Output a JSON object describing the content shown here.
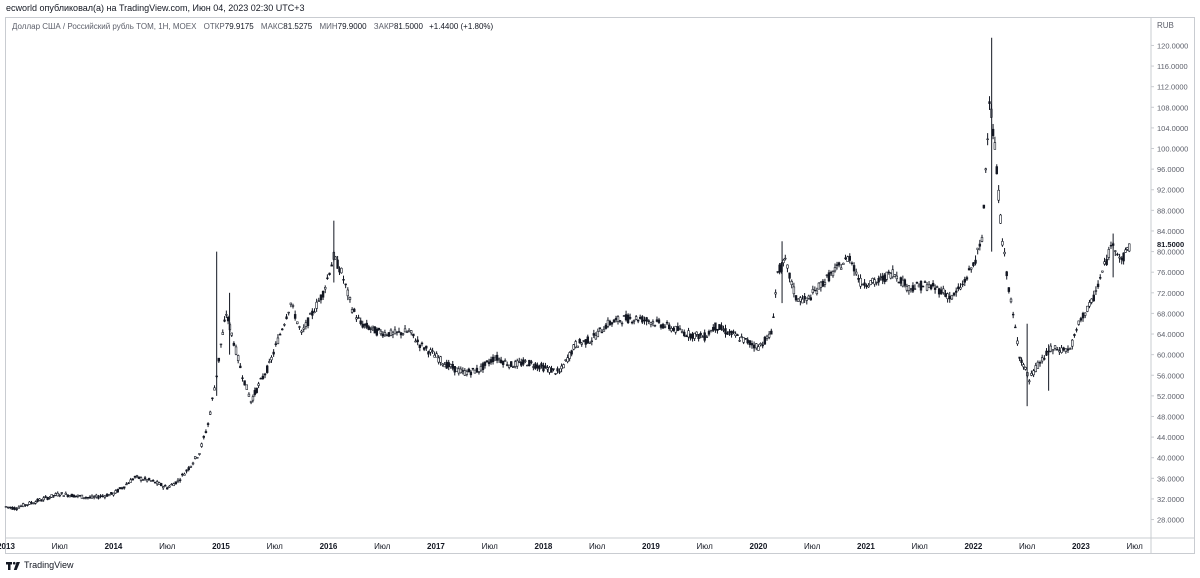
{
  "header": {
    "published": "ecworld опубликовал(а) на TradingView.com, Июн 04, 2023 02:30 UTC+3"
  },
  "legend": {
    "instrument": "Доллар США / Российский рубль TOM, 1Н, MOEX",
    "open_label": "ОТКР",
    "open_value": "79.9175",
    "high_label": "МАКС",
    "high_value": "81.5275",
    "low_label": "МИН",
    "low_value": "79.9000",
    "close_label": "ЗАКР",
    "close_value": "81.5000",
    "change": "+1.4400 (+1.80%)"
  },
  "footer": {
    "brand": "TradingView"
  },
  "chart_data": {
    "type": "candlestick",
    "title": "Доллар США / Российский рубль TOM, 1Н, MOEX",
    "currency_label": "RUB",
    "y_scale": "linear",
    "ylim": [
      25.0,
      123.0
    ],
    "y_ticks": [
      28,
      32,
      36,
      40,
      44,
      48,
      52,
      56,
      60,
      64,
      68,
      72,
      76,
      80,
      84,
      88,
      92,
      96,
      100,
      104,
      108,
      112,
      116,
      120
    ],
    "x_range": [
      2013.0,
      2023.55
    ],
    "x_ticks": [
      {
        "x": 2013.0,
        "label": "2013",
        "bold": true
      },
      {
        "x": 2013.5,
        "label": "Июл",
        "bold": false
      },
      {
        "x": 2014.0,
        "label": "2014",
        "bold": true
      },
      {
        "x": 2014.5,
        "label": "Июл",
        "bold": false
      },
      {
        "x": 2015.0,
        "label": "2015",
        "bold": true
      },
      {
        "x": 2015.5,
        "label": "Июл",
        "bold": false
      },
      {
        "x": 2016.0,
        "label": "2016",
        "bold": true
      },
      {
        "x": 2016.5,
        "label": "Июл",
        "bold": false
      },
      {
        "x": 2017.0,
        "label": "2017",
        "bold": true
      },
      {
        "x": 2017.5,
        "label": "Июл",
        "bold": false
      },
      {
        "x": 2018.0,
        "label": "2018",
        "bold": true
      },
      {
        "x": 2018.5,
        "label": "Июл",
        "bold": false
      },
      {
        "x": 2019.0,
        "label": "2019",
        "bold": true
      },
      {
        "x": 2019.5,
        "label": "Июл",
        "bold": false
      },
      {
        "x": 2020.0,
        "label": "2020",
        "bold": true
      },
      {
        "x": 2020.5,
        "label": "Июл",
        "bold": false
      },
      {
        "x": 2021.0,
        "label": "2021",
        "bold": true
      },
      {
        "x": 2021.5,
        "label": "Июл",
        "bold": false
      },
      {
        "x": 2022.0,
        "label": "2022",
        "bold": true
      },
      {
        "x": 2022.5,
        "label": "Июл",
        "bold": false
      },
      {
        "x": 2023.0,
        "label": "2023",
        "bold": true
      },
      {
        "x": 2023.5,
        "label": "Июл",
        "bold": false
      }
    ],
    "last_price_label": "81.5000",
    "last_price": 81.5,
    "grid": false,
    "series": [
      {
        "name": "USD/RUB",
        "color": "#131722",
        "points": [
          [
            2013.0,
            30.5
          ],
          [
            2013.08,
            30.2
          ],
          [
            2013.2,
            31.0
          ],
          [
            2013.35,
            32.0
          ],
          [
            2013.5,
            33.0
          ],
          [
            2013.65,
            32.6
          ],
          [
            2013.8,
            32.2
          ],
          [
            2014.0,
            33.0
          ],
          [
            2014.1,
            34.5
          ],
          [
            2014.2,
            36.2
          ],
          [
            2014.35,
            35.5
          ],
          [
            2014.5,
            34.2
          ],
          [
            2014.6,
            35.5
          ],
          [
            2014.7,
            38.0
          ],
          [
            2014.8,
            41.0
          ],
          [
            2014.88,
            46.5
          ],
          [
            2014.96,
            56.0
          ],
          [
            2015.0,
            62.0
          ],
          [
            2015.05,
            68.0
          ],
          [
            2015.1,
            64.0
          ],
          [
            2015.2,
            56.0
          ],
          [
            2015.28,
            51.0
          ],
          [
            2015.35,
            54.0
          ],
          [
            2015.45,
            58.0
          ],
          [
            2015.55,
            64.0
          ],
          [
            2015.65,
            70.0
          ],
          [
            2015.75,
            64.0
          ],
          [
            2015.85,
            68.0
          ],
          [
            2015.95,
            72.0
          ],
          [
            2016.05,
            79.0
          ],
          [
            2016.12,
            76.0
          ],
          [
            2016.22,
            69.0
          ],
          [
            2016.3,
            66.0
          ],
          [
            2016.45,
            64.5
          ],
          [
            2016.6,
            64.0
          ],
          [
            2016.75,
            64.5
          ],
          [
            2016.85,
            62.0
          ],
          [
            2016.95,
            60.5
          ],
          [
            2017.1,
            58.0
          ],
          [
            2017.25,
            56.5
          ],
          [
            2017.4,
            57.0
          ],
          [
            2017.55,
            59.5
          ],
          [
            2017.7,
            58.0
          ],
          [
            2017.85,
            58.5
          ],
          [
            2018.0,
            57.5
          ],
          [
            2018.15,
            56.5
          ],
          [
            2018.3,
            62.0
          ],
          [
            2018.45,
            63.0
          ],
          [
            2018.6,
            66.0
          ],
          [
            2018.75,
            67.0
          ],
          [
            2018.9,
            67.0
          ],
          [
            2019.0,
            66.5
          ],
          [
            2019.15,
            65.5
          ],
          [
            2019.35,
            64.0
          ],
          [
            2019.5,
            63.5
          ],
          [
            2019.6,
            65.5
          ],
          [
            2019.75,
            64.0
          ],
          [
            2019.9,
            62.5
          ],
          [
            2020.0,
            61.5
          ],
          [
            2020.12,
            64.0
          ],
          [
            2020.18,
            76.0
          ],
          [
            2020.25,
            78.0
          ],
          [
            2020.35,
            71.0
          ],
          [
            2020.45,
            70.5
          ],
          [
            2020.6,
            74.0
          ],
          [
            2020.75,
            77.0
          ],
          [
            2020.85,
            79.0
          ],
          [
            2020.95,
            74.0
          ],
          [
            2021.1,
            74.0
          ],
          [
            2021.25,
            76.0
          ],
          [
            2021.4,
            73.0
          ],
          [
            2021.55,
            73.5
          ],
          [
            2021.7,
            72.5
          ],
          [
            2021.8,
            71.0
          ],
          [
            2021.9,
            73.5
          ],
          [
            2022.0,
            77.5
          ],
          [
            2022.08,
            82.0
          ],
          [
            2022.15,
            110.0
          ],
          [
            2022.2,
            100.0
          ],
          [
            2022.27,
            82.0
          ],
          [
            2022.35,
            70.0
          ],
          [
            2022.43,
            60.0
          ],
          [
            2022.52,
            55.0
          ],
          [
            2022.6,
            58.0
          ],
          [
            2022.72,
            61.0
          ],
          [
            2022.82,
            61.0
          ],
          [
            2022.9,
            61.0
          ],
          [
            2023.0,
            67.0
          ],
          [
            2023.1,
            70.0
          ],
          [
            2023.2,
            76.0
          ],
          [
            2023.3,
            82.0
          ],
          [
            2023.38,
            78.0
          ],
          [
            2023.45,
            81.5
          ]
        ],
        "spikes": [
          {
            "x": 2014.96,
            "high": 80.0,
            "low": 52.0
          },
          {
            "x": 2015.08,
            "high": 72.0,
            "low": 60.0
          },
          {
            "x": 2016.05,
            "high": 86.0,
            "low": 74.0
          },
          {
            "x": 2020.22,
            "high": 82.0,
            "low": 70.0
          },
          {
            "x": 2022.17,
            "high": 121.5,
            "low": 80.0
          },
          {
            "x": 2022.5,
            "high": 66.0,
            "low": 50.0
          },
          {
            "x": 2022.7,
            "high": 62.0,
            "low": 53.0
          },
          {
            "x": 2023.3,
            "high": 83.5,
            "low": 75.0
          }
        ]
      }
    ]
  }
}
